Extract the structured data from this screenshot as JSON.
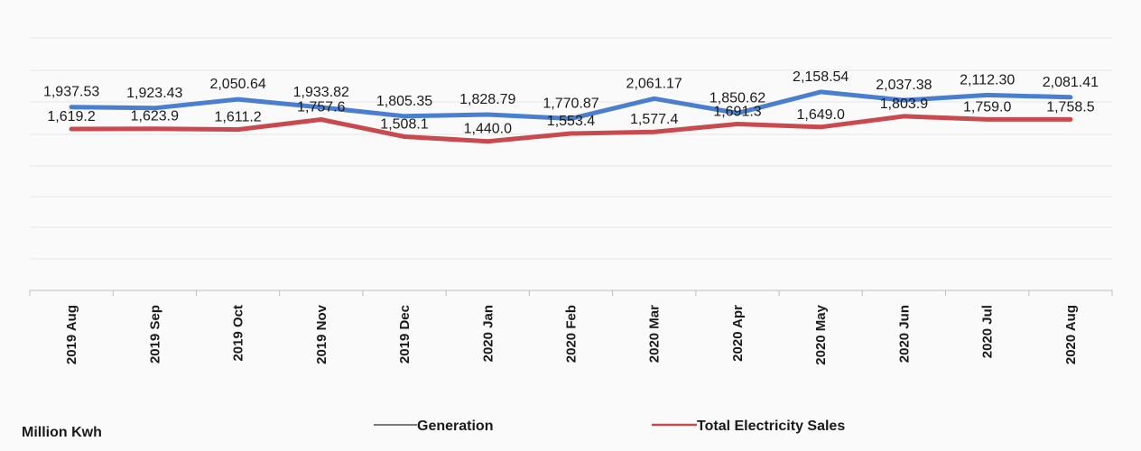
{
  "chart_data": {
    "type": "line",
    "categories": [
      "2019 Aug",
      "2019 Sep",
      "2019 Oct",
      "2019 Nov",
      "2019 Dec",
      "2020 Jan",
      "2020 Feb",
      "2020 Mar",
      "2020 Apr",
      "2020 May",
      "2020 Jun",
      "2020 Jul",
      "2020 Aug"
    ],
    "series": [
      {
        "name": "Generation",
        "color": "#4a7fcf",
        "values": [
          1937.53,
          1923.43,
          2050.64,
          1933.82,
          1805.35,
          1828.79,
          1770.87,
          2061.17,
          1850.62,
          2158.54,
          2037.38,
          2112.3,
          2081.41
        ],
        "labels": [
          "1,937.53",
          "1,923.43",
          "2,050.64",
          "1,933.82",
          "1,805.35",
          "1,828.79",
          "1,770.87",
          "2,061.17",
          "1,850.62",
          "2,158.54",
          "2,037.38",
          "2,112.30",
          "2,081.41"
        ]
      },
      {
        "name": "Total Electricity Sales",
        "color": "#c84a4e",
        "values": [
          1619.2,
          1623.9,
          1611.2,
          1757.6,
          1508.1,
          1440.0,
          1553.4,
          1577.4,
          1691.3,
          1649.0,
          1803.9,
          1759.0,
          1758.5
        ],
        "labels": [
          "1,619.2",
          "1,623.9",
          "1,611.2",
          "1,757.6",
          "1,508.1",
          "1,440.0",
          "1,553.4",
          "1,577.4",
          "1,691.3",
          "1,649.0",
          "1,803.9",
          "1,759.0",
          "1,758.5"
        ]
      }
    ],
    "unit_label": "Million Kwh",
    "legend": {
      "position": "bottom",
      "legend_line_color": "#7a7a7a"
    },
    "grid": true,
    "gridline_color": "#e6e6e6"
  }
}
